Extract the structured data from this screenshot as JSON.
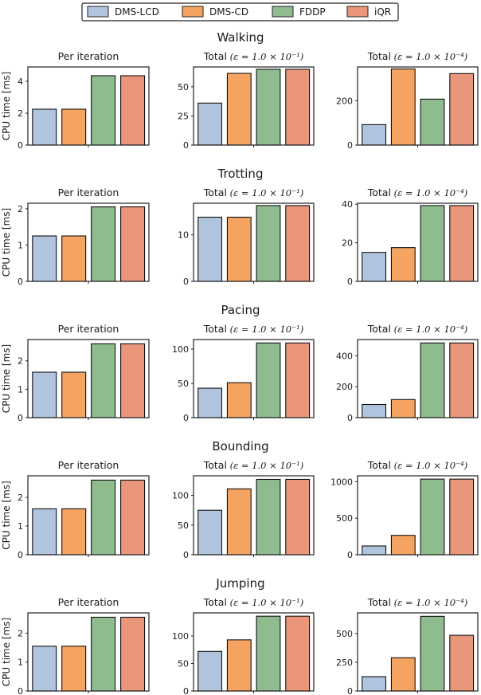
{
  "chart_data": {
    "type": "bar",
    "legend": {
      "placement": "top-center",
      "entries": [
        {
          "name": "DMS-LCD",
          "color": "#b0c4de"
        },
        {
          "name": "DMS-CD",
          "color": "#f4a460"
        },
        {
          "name": "FDDP",
          "color": "#8fbc8f"
        },
        {
          "name": "iQR",
          "color": "#e9967a"
        }
      ]
    },
    "ylabel": "CPU time [ms]",
    "column_titles": [
      {
        "prefix": "Per iteration",
        "math": ""
      },
      {
        "prefix": "Total",
        "math": "(ε = 1.0 × 10⁻¹)"
      },
      {
        "prefix": "Total",
        "math": "(ε = 1.0 × 10⁻⁴)"
      }
    ],
    "rows": [
      {
        "title": "Walking",
        "panels": [
          {
            "values": [
              2.25,
              2.25,
              4.35,
              4.35
            ],
            "ylim": [
              0,
              4.9
            ],
            "yticks": [
              0,
              2,
              4
            ]
          },
          {
            "values": [
              36,
              61.5,
              65,
              65
            ],
            "ylim": [
              0,
              67
            ],
            "yticks": [
              0,
              25,
              50
            ]
          },
          {
            "values": [
              92,
              343,
              207,
              322
            ],
            "ylim": [
              0,
              352
            ],
            "yticks": [
              0,
              200
            ]
          }
        ]
      },
      {
        "title": "Trotting",
        "panels": [
          {
            "values": [
              1.25,
              1.25,
              2.05,
              2.05
            ],
            "ylim": [
              0,
              2.15
            ],
            "yticks": [
              0,
              1,
              2
            ]
          },
          {
            "values": [
              13.8,
              13.8,
              16.3,
              16.3
            ],
            "ylim": [
              0,
              16.8
            ],
            "yticks": [
              0,
              10
            ]
          },
          {
            "values": [
              15,
              17.5,
              39.3,
              39.3
            ],
            "ylim": [
              0,
              40.5
            ],
            "yticks": [
              0,
              20,
              40
            ]
          }
        ]
      },
      {
        "title": "Pacing",
        "panels": [
          {
            "values": [
              1.6,
              1.6,
              2.6,
              2.6
            ],
            "ylim": [
              0,
              2.75
            ],
            "yticks": [
              0,
              1,
              2
            ]
          },
          {
            "values": [
              43,
              51,
              109,
              109
            ],
            "ylim": [
              0,
              114
            ],
            "yticks": [
              0,
              50,
              100
            ]
          },
          {
            "values": [
              85,
              117,
              483,
              483
            ],
            "ylim": [
              0,
              505
            ],
            "yticks": [
              0,
              200,
              400
            ]
          }
        ]
      },
      {
        "title": "Bounding",
        "panels": [
          {
            "values": [
              1.6,
              1.6,
              2.6,
              2.6
            ],
            "ylim": [
              0,
              2.75
            ],
            "yticks": [
              0,
              1,
              2
            ]
          },
          {
            "values": [
              75,
              111,
              127,
              127
            ],
            "ylim": [
              0,
              133
            ],
            "yticks": [
              0,
              50,
              100
            ]
          },
          {
            "values": [
              120,
              265,
              1035,
              1035
            ],
            "ylim": [
              0,
              1080
            ],
            "yticks": [
              0,
              500,
              1000
            ]
          }
        ]
      },
      {
        "title": "Jumping",
        "panels": [
          {
            "values": [
              1.55,
              1.55,
              2.55,
              2.55
            ],
            "ylim": [
              0,
              2.7
            ],
            "yticks": [
              0,
              1,
              2
            ]
          },
          {
            "values": [
              72,
              93,
              136,
              136
            ],
            "ylim": [
              0,
              142
            ],
            "yticks": [
              0,
              50,
              100
            ]
          },
          {
            "values": [
              125,
              290,
              650,
              485
            ],
            "ylim": [
              0,
              680
            ],
            "yticks": [
              0,
              250,
              500
            ]
          }
        ]
      }
    ]
  }
}
